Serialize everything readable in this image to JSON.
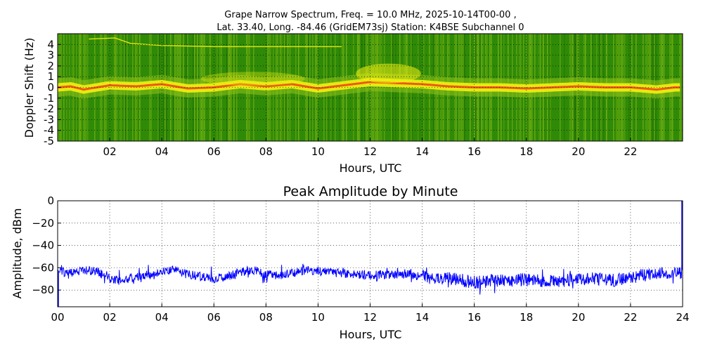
{
  "figure_title": {
    "line1": "Grape Narrow Spectrum, Freq. = 10.0 MHz, 2025-10-14T00-00 ,",
    "line2": "Lat.  33.40, Long. -84.46 (GridEM73sj) Station: K4BSE Subchannel 0"
  },
  "colors": {
    "spec_background": "#2f8a07",
    "spec_mid": "#8fc21a",
    "spec_yellow": "#f2ef12",
    "spec_hot": "#f04010",
    "amplitude_line": "#0000ff",
    "grid": "#000000"
  },
  "chart_data": [
    {
      "type": "heatmap",
      "title": "",
      "xlabel": "Hours, UTC",
      "ylabel": "Doppler Shift (Hz)",
      "xlim": [
        0,
        24
      ],
      "ylim": [
        -5,
        5
      ],
      "x_ticks": [
        2,
        4,
        6,
        8,
        10,
        12,
        14,
        16,
        18,
        20,
        22
      ],
      "x_tick_labels": [
        "02",
        "04",
        "06",
        "08",
        "10",
        "12",
        "14",
        "16",
        "18",
        "20",
        "22"
      ],
      "y_ticks": [
        4,
        3,
        2,
        1,
        0,
        -1,
        -2,
        -3,
        -4,
        -5
      ],
      "y_tick_labels": [
        "4",
        "3",
        "2",
        "1",
        "0",
        "-1",
        "-2",
        "-3",
        "-4",
        "-5"
      ],
      "grid": true,
      "carrier_trace": {
        "hours": [
          0,
          0.5,
          1,
          1.5,
          2,
          3,
          4,
          4.5,
          5,
          6,
          7,
          8,
          9,
          10,
          11,
          12,
          13,
          14,
          15,
          16,
          17,
          18,
          19,
          20,
          21,
          22,
          23,
          23.7
        ],
        "doppler_hz": [
          0.0,
          0.1,
          -0.2,
          0.0,
          0.2,
          0.1,
          0.3,
          0.1,
          -0.1,
          0.0,
          0.3,
          0.1,
          0.3,
          -0.1,
          0.2,
          0.5,
          0.4,
          0.3,
          0.1,
          0.0,
          0.0,
          -0.1,
          0.0,
          0.1,
          0.0,
          0.0,
          -0.2,
          0.0
        ]
      },
      "secondary_trace": {
        "hours": [
          1.2,
          2.2,
          2.8,
          4,
          6,
          8,
          10,
          10.9
        ],
        "doppler_hz": [
          4.5,
          4.6,
          4.1,
          3.9,
          3.8,
          3.8,
          3.8,
          3.8
        ]
      }
    },
    {
      "type": "line",
      "title": "Peak Amplitude by Minute",
      "xlabel": "Hours, UTC",
      "ylabel": "Amplitude, dBm",
      "xlim": [
        0,
        24
      ],
      "ylim": [
        -95,
        0
      ],
      "x_ticks": [
        0,
        2,
        4,
        6,
        8,
        10,
        12,
        14,
        16,
        18,
        20,
        22,
        24
      ],
      "x_tick_labels": [
        "00",
        "02",
        "04",
        "06",
        "08",
        "10",
        "12",
        "14",
        "16",
        "18",
        "20",
        "22",
        "24"
      ],
      "y_ticks": [
        0,
        -20,
        -40,
        -60,
        -80
      ],
      "y_tick_labels": [
        "0",
        "−20",
        "−40",
        "−60",
        "−80"
      ],
      "grid": true,
      "series": [
        {
          "x": [
            0,
            0.5,
            1,
            1.5,
            2,
            2.5,
            3,
            3.5,
            4,
            4.5,
            5,
            5.5,
            6,
            6.5,
            7,
            7.5,
            8,
            8.5,
            9,
            9.5,
            10,
            10.5,
            11,
            11.5,
            12,
            12.5,
            13,
            13.5,
            14,
            14.5,
            15,
            15.5,
            16,
            16.5,
            17,
            17.5,
            18,
            18.5,
            19,
            19.5,
            20,
            20.5,
            21,
            21.5,
            22,
            22.5,
            23,
            23.5,
            24
          ],
          "y": [
            -63,
            -65,
            -62,
            -63,
            -70,
            -72,
            -68,
            -66,
            -63,
            -62,
            -66,
            -68,
            -70,
            -68,
            -64,
            -62,
            -66,
            -67,
            -65,
            -62,
            -63,
            -64,
            -65,
            -66,
            -67,
            -66,
            -66,
            -66,
            -68,
            -70,
            -70,
            -71,
            -73,
            -72,
            -72,
            -71,
            -71,
            -72,
            -72,
            -71,
            -70,
            -70,
            -71,
            -71,
            -68,
            -67,
            -66,
            -65,
            -64
          ]
        }
      ]
    }
  ]
}
